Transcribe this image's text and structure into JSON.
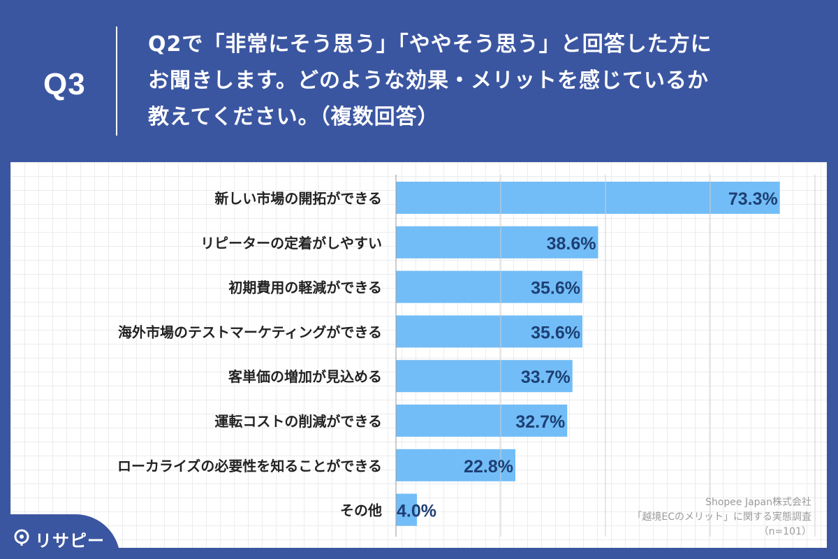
{
  "header": {
    "q_label": "Q3",
    "question": "Q2で「非常にそう思う」「ややそう思う」と回答した方に\nお聞きします。どのような効果・メリットを感じているか\n教えてください。（複数回答）"
  },
  "source": {
    "line1": "Shopee Japan株式会社",
    "line2": "「越境ECのメリット」に関する実態調査",
    "line3": "（n=101）"
  },
  "brand": {
    "name": "リサピー",
    "icon": "lisapy-logo-icon"
  },
  "colors": {
    "background": "#3b56a1",
    "bar": "#72bdf7",
    "value_text": "#1d3f73",
    "category_text": "#222222"
  },
  "chart_data": {
    "type": "bar",
    "orientation": "horizontal",
    "title": "",
    "xlabel": "",
    "ylabel": "",
    "xlim": [
      0,
      80
    ],
    "grid": true,
    "categories": [
      "新しい市場の開拓ができる",
      "リピーターの定着がしやすい",
      "初期費用の軽減ができる",
      "海外市場のテストマーケティングができる",
      "客単価の増加が見込める",
      "運転コストの削減ができる",
      "ローカライズの必要性を知ることができる",
      "その他"
    ],
    "values": [
      73.3,
      38.6,
      35.6,
      35.6,
      33.7,
      32.7,
      22.8,
      4.0
    ],
    "value_labels": [
      "73.3%",
      "38.6%",
      "35.6%",
      "35.6%",
      "33.7%",
      "32.7%",
      "22.8%",
      "4.0%"
    ]
  }
}
